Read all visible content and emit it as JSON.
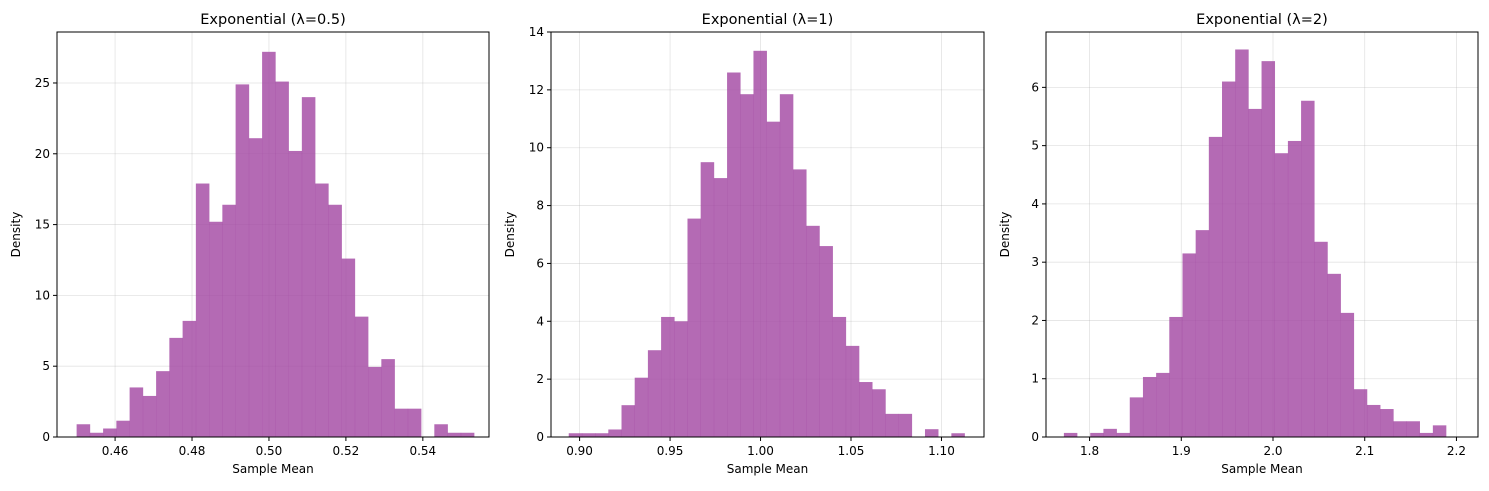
{
  "chart_data": [
    {
      "type": "bar",
      "title": "Exponential (λ=0.5)",
      "xlabel": "Sample Mean",
      "ylabel": "Density",
      "xlim": [
        0.4449,
        0.5572
      ],
      "ylim": [
        0,
        28.6
      ],
      "xticks": [
        0.46,
        0.48,
        0.5,
        0.52,
        0.54
      ],
      "xtick_labels": [
        "0.46",
        "0.48",
        "0.50",
        "0.52",
        "0.54"
      ],
      "yticks": [
        0,
        5,
        10,
        15,
        20,
        25
      ],
      "ytick_labels": [
        "0",
        "5",
        "10",
        "15",
        "20",
        "25"
      ],
      "grid": true,
      "bar_color": "#a349a4",
      "bin_start": 0.45,
      "bin_width": 0.003444,
      "values": [
        0.9,
        0.3,
        0.6,
        1.15,
        3.5,
        2.9,
        4.65,
        7.0,
        8.2,
        17.9,
        15.2,
        16.4,
        24.9,
        21.1,
        27.2,
        25.1,
        20.2,
        24.0,
        17.9,
        16.4,
        12.6,
        8.5,
        4.95,
        5.5,
        2.0,
        2.0,
        0,
        0.9,
        0.3,
        0.3
      ]
    },
    {
      "type": "bar",
      "title": "Exponential (λ=1)",
      "xlabel": "Sample Mean",
      "ylabel": "Density",
      "xlim": [
        0.8842,
        1.1235
      ],
      "ylim": [
        0,
        14.0
      ],
      "xticks": [
        0.9,
        0.95,
        1.0,
        1.05,
        1.1
      ],
      "xtick_labels": [
        "0.90",
        "0.95",
        "1.00",
        "1.05",
        "1.10"
      ],
      "yticks": [
        0,
        2,
        4,
        6,
        8,
        10,
        12,
        14
      ],
      "ytick_labels": [
        "0",
        "2",
        "4",
        "6",
        "8",
        "10",
        "12",
        "14"
      ],
      "grid": true,
      "bar_color": "#a349a4",
      "bin_start": 0.894,
      "bin_width": 0.007292,
      "values": [
        0.13,
        0.13,
        0.13,
        0.26,
        1.1,
        2.05,
        3.0,
        4.15,
        4.0,
        7.55,
        9.5,
        8.95,
        12.6,
        11.85,
        13.35,
        10.9,
        11.85,
        9.25,
        7.3,
        6.6,
        4.15,
        3.15,
        1.9,
        1.65,
        0.8,
        0.8,
        0,
        0.27,
        0,
        0.13
      ]
    },
    {
      "type": "bar",
      "title": "Exponential (λ=2)",
      "xlabel": "Sample Mean",
      "ylabel": "Density",
      "xlim": [
        1.7525,
        2.2235
      ],
      "ylim": [
        0,
        6.95
      ],
      "xticks": [
        1.8,
        1.9,
        2.0,
        2.1,
        2.2
      ],
      "xtick_labels": [
        "1.8",
        "1.9",
        "2.0",
        "2.1",
        "2.2"
      ],
      "yticks": [
        0,
        1,
        2,
        3,
        4,
        5,
        6
      ],
      "ytick_labels": [
        "0",
        "1",
        "2",
        "3",
        "4",
        "5",
        "6"
      ],
      "grid": true,
      "bar_color": "#a349a4",
      "bin_start": 1.772,
      "bin_width": 0.014367,
      "values": [
        0.07,
        0,
        0.07,
        0.14,
        0.07,
        0.68,
        1.03,
        1.1,
        2.06,
        3.15,
        3.55,
        5.15,
        6.1,
        6.65,
        5.63,
        6.45,
        4.87,
        5.08,
        5.77,
        3.35,
        2.8,
        2.13,
        0.82,
        0.55,
        0.48,
        0.27,
        0.27,
        0.07,
        0.2
      ]
    }
  ]
}
